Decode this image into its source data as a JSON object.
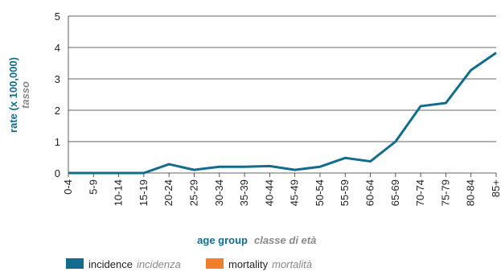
{
  "chart_data": {
    "type": "line",
    "y_label": "rate (x 100,000)",
    "y_label_it": "tasso",
    "x_label": "age group",
    "x_label_it": "classe di età",
    "categories": [
      "0-4",
      "5-9",
      "10-14",
      "15-19",
      "20-24",
      "25-29",
      "30-34",
      "35-39",
      "40-44",
      "45-49",
      "50-54",
      "55-59",
      "60-64",
      "65-69",
      "70-74",
      "75-79",
      "80-84",
      "85+"
    ],
    "series": [
      {
        "name": "incidence",
        "name_it": "incidenza",
        "color": "#136c8e",
        "values": [
          0,
          0,
          0,
          0,
          0.28,
          0.1,
          0.2,
          0.2,
          0.22,
          0.1,
          0.2,
          0.48,
          0.37,
          1.0,
          2.13,
          2.23,
          3.28,
          3.83
        ]
      },
      {
        "name": "mortality",
        "name_it": "mortalità",
        "color": "#f07f2c",
        "values": [
          null,
          null,
          null,
          null,
          null,
          null,
          null,
          null,
          null,
          null,
          null,
          null,
          null,
          null,
          null,
          null,
          null,
          null
        ]
      }
    ],
    "ylim": [
      0,
      5
    ],
    "yticks": [
      0,
      1,
      2,
      3,
      4,
      5
    ],
    "grid": true
  }
}
